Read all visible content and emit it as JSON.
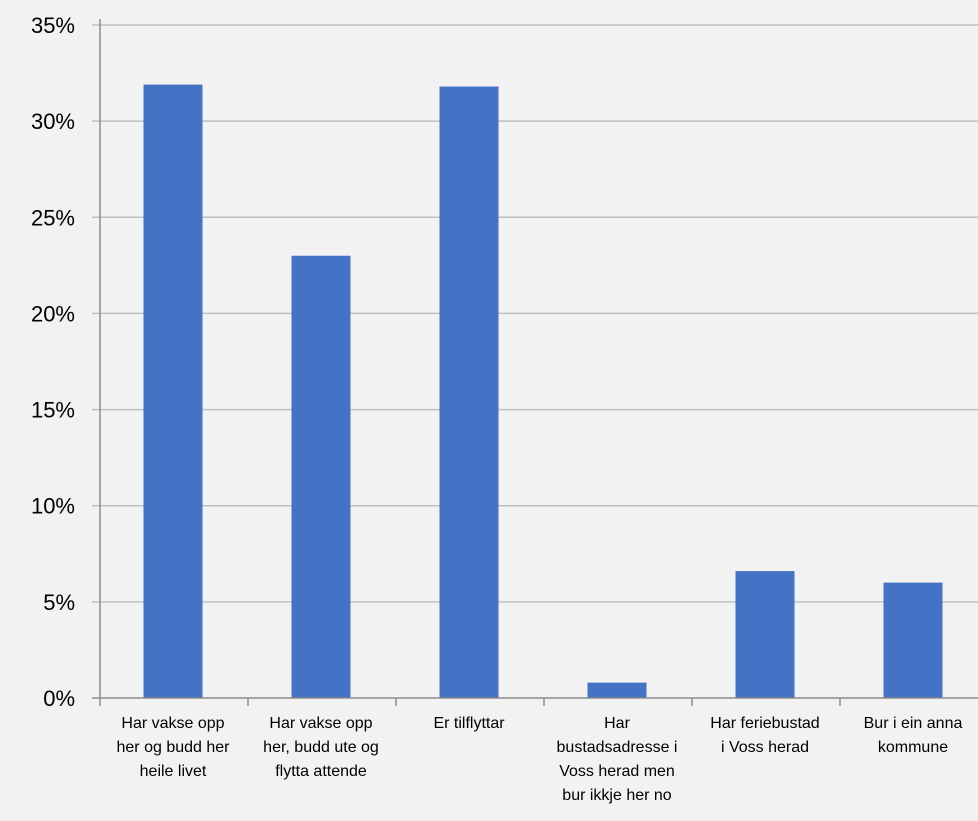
{
  "chart_data": {
    "type": "bar",
    "categories": [
      [
        "Har vakse opp",
        "her og budd her",
        "heile livet"
      ],
      [
        "Har vakse opp",
        "her, budd ute og",
        "flytta attende"
      ],
      [
        "Er tilflyttar"
      ],
      [
        "Har",
        "bustadsadresse i",
        "Voss herad men",
        "bur ikkje her no"
      ],
      [
        "Har feriebustad",
        "i Voss herad"
      ],
      [
        "Bur i ein anna",
        "kommune"
      ]
    ],
    "values": [
      31.9,
      23.0,
      31.8,
      0.8,
      6.6,
      6.0
    ],
    "yticks": [
      "0%",
      "5%",
      "10%",
      "15%",
      "20%",
      "25%",
      "30%",
      "35%"
    ],
    "ylim": [
      0,
      35
    ],
    "grid": true,
    "bar_color": "#4472c4",
    "grid_color": "#bfbfbf",
    "axis_color": "#8c8c8c",
    "title": "",
    "xlabel": "",
    "ylabel": ""
  }
}
